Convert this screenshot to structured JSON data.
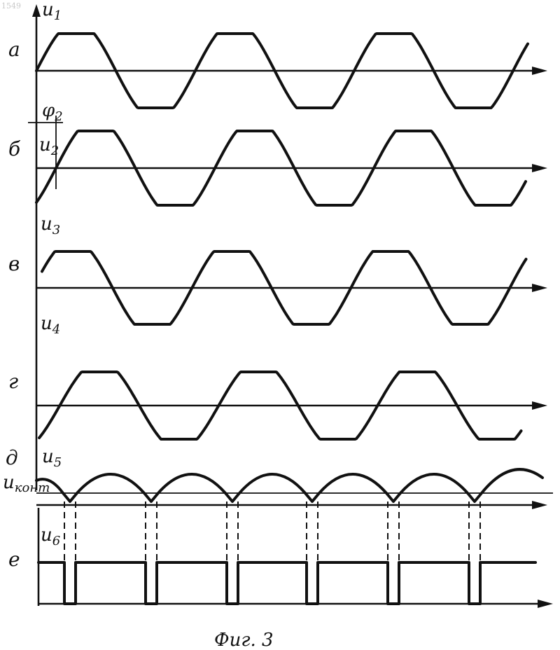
{
  "figure": {
    "code": "1549",
    "caption": "Фиг. 3",
    "rows": [
      {
        "letter": "а",
        "signal": "u",
        "index": "1"
      },
      {
        "letter": "б",
        "signal": "u",
        "index": "2",
        "phase_label": "φ",
        "phase_index": "2"
      },
      {
        "letter": "в",
        "signal": "u",
        "index": "3"
      },
      {
        "letter": "г",
        "signal": "u",
        "index": "4"
      },
      {
        "letter": "д",
        "signal": "u",
        "index": "5",
        "threshold_label": "u",
        "threshold_index": "конт"
      },
      {
        "letter": "е",
        "signal": "u",
        "index": "6"
      }
    ]
  }
}
